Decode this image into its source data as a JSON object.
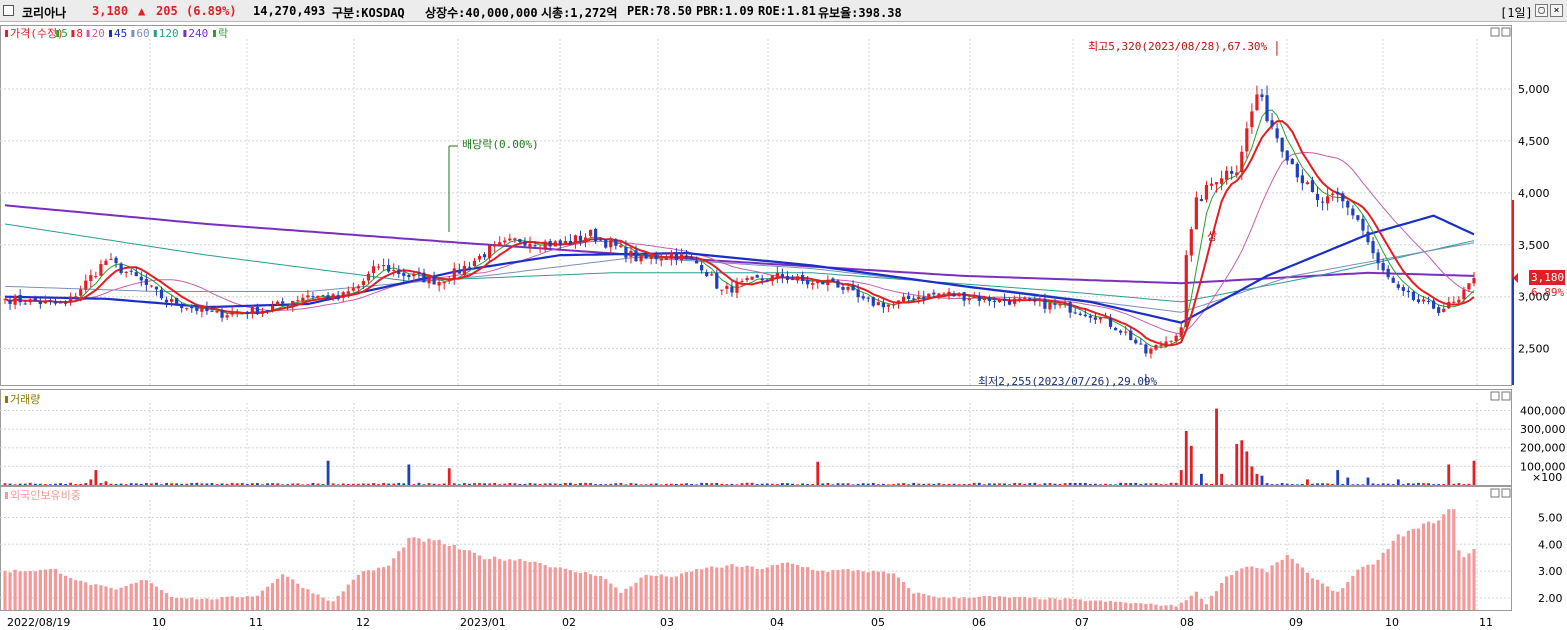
{
  "header": {
    "name": "코리아나",
    "price": "3,180",
    "change_arrow": "▲",
    "change": "205",
    "change_pct": "(6.89%)",
    "volume": "14,270,493",
    "market": "구분:KOSDAQ",
    "listed": "상장수:40,000,000",
    "mktcap": "시총:1,272억",
    "per": "PER:78.50",
    "pbr": "PBR:1.09",
    "roe": "ROE:1.81",
    "retention": "유보율:398.38",
    "period": "[1일]"
  },
  "legend": {
    "price": "가격(수정)",
    "ma": [
      "5",
      "8",
      "20",
      "45",
      "60",
      "120",
      "240"
    ],
    "ex": "락",
    "volume": "거래량",
    "foreign": "외국인보유비중"
  },
  "colors": {
    "up": "#e31e24",
    "down": "#1f3fbf",
    "ma5": "#2aa02a",
    "ma8": "#e31e24",
    "ma20": "#c65fa9",
    "ma45": "#1a2ec8",
    "ma60": "#7a8fbf",
    "ma120": "#2a9d8f",
    "ma240": "#7b2fbf",
    "foreign": "#f29a9a",
    "annot_high": "#c01010",
    "annot_low": "#1a2e7a",
    "annot_div": "#1a7a1a"
  },
  "annotations": {
    "high": "최고5,320(2023/08/28),67.30%",
    "low": "최저2,255(2023/07/26),29.09%",
    "dividend": "배당락(0.00%)",
    "upper_limit": "상"
  },
  "current": {
    "price": "3,180",
    "pct": "6.89%"
  },
  "chart_data": [
    {
      "type": "candlestick",
      "title": "가격(수정)",
      "x": [
        "2022/08/19",
        "10",
        "11",
        "12",
        "2023/01",
        "02",
        "03",
        "04",
        "05",
        "06",
        "07",
        "08",
        "09",
        "10",
        "11"
      ],
      "y_ticks": [
        2500,
        3000,
        3500,
        4000,
        4500,
        5000
      ],
      "y_tick_labels": [
        "2,500",
        "3,000",
        "3,500",
        "4,000",
        "4,500",
        "5,000"
      ],
      "ylim": [
        2150,
        5500
      ],
      "anchors": [
        {
          "i": 0,
          "p": 2980
        },
        {
          "i": 12,
          "p": 2920
        },
        {
          "i": 20,
          "p": 3350
        },
        {
          "i": 26,
          "p": 3180
        },
        {
          "i": 32,
          "p": 2960
        },
        {
          "i": 42,
          "p": 2830
        },
        {
          "i": 52,
          "p": 2880
        },
        {
          "i": 60,
          "p": 3020
        },
        {
          "i": 66,
          "p": 2980
        },
        {
          "i": 70,
          "p": 3100
        },
        {
          "i": 74,
          "p": 3300
        },
        {
          "i": 80,
          "p": 3200
        },
        {
          "i": 86,
          "p": 3150
        },
        {
          "i": 90,
          "p": 3250
        },
        {
          "i": 96,
          "p": 3450
        },
        {
          "i": 102,
          "p": 3550
        },
        {
          "i": 110,
          "p": 3500
        },
        {
          "i": 116,
          "p": 3600
        },
        {
          "i": 122,
          "p": 3450
        },
        {
          "i": 126,
          "p": 3350
        },
        {
          "i": 132,
          "p": 3420
        },
        {
          "i": 138,
          "p": 3300
        },
        {
          "i": 142,
          "p": 3050
        },
        {
          "i": 148,
          "p": 3150
        },
        {
          "i": 154,
          "p": 3200
        },
        {
          "i": 160,
          "p": 3120
        },
        {
          "i": 164,
          "p": 3150
        },
        {
          "i": 170,
          "p": 2950
        },
        {
          "i": 176,
          "p": 2920
        },
        {
          "i": 180,
          "p": 3000
        },
        {
          "i": 186,
          "p": 3030
        },
        {
          "i": 194,
          "p": 2980
        },
        {
          "i": 202,
          "p": 2950
        },
        {
          "i": 210,
          "p": 2900
        },
        {
          "i": 216,
          "p": 2820
        },
        {
          "i": 222,
          "p": 2650
        },
        {
          "i": 226,
          "p": 2460
        },
        {
          "i": 229,
          "p": 2540
        },
        {
          "i": 233,
          "p": 2680
        },
        {
          "i": 234,
          "p": 3400
        },
        {
          "i": 236,
          "p": 3900
        },
        {
          "i": 240,
          "p": 4150
        },
        {
          "i": 244,
          "p": 4250
        },
        {
          "i": 248,
          "p": 4950
        },
        {
          "i": 252,
          "p": 4550
        },
        {
          "i": 256,
          "p": 4200
        },
        {
          "i": 260,
          "p": 3900
        },
        {
          "i": 264,
          "p": 3950
        },
        {
          "i": 268,
          "p": 3750
        },
        {
          "i": 272,
          "p": 3300
        },
        {
          "i": 276,
          "p": 3050
        },
        {
          "i": 280,
          "p": 2950
        },
        {
          "i": 284,
          "p": 2880
        },
        {
          "i": 288,
          "p": 2950
        },
        {
          "i": 291,
          "p": 3180
        }
      ],
      "ma_end": {
        "ma45": 3600,
        "ma60": 3520,
        "ma120": 3540,
        "ma240": 3200
      }
    },
    {
      "type": "bar",
      "title": "거래량",
      "y_ticks": [
        100000,
        200000,
        300000,
        400000
      ],
      "y_tick_labels": [
        "100,000",
        "200,000",
        "300,000",
        "400,000"
      ],
      "unit": "×100",
      "ylim": [
        0,
        440000
      ],
      "spikes": [
        {
          "i": 17,
          "v": 30000
        },
        {
          "i": 18,
          "v": 80000
        },
        {
          "i": 20,
          "v": 20000
        },
        {
          "i": 64,
          "v": 130000
        },
        {
          "i": 80,
          "v": 110000
        },
        {
          "i": 88,
          "v": 90000
        },
        {
          "i": 161,
          "v": 125000
        },
        {
          "i": 233,
          "v": 80000
        },
        {
          "i": 234,
          "v": 290000
        },
        {
          "i": 235,
          "v": 210000
        },
        {
          "i": 237,
          "v": 60000
        },
        {
          "i": 240,
          "v": 410000
        },
        {
          "i": 241,
          "v": 60000
        },
        {
          "i": 244,
          "v": 220000
        },
        {
          "i": 245,
          "v": 240000
        },
        {
          "i": 246,
          "v": 180000
        },
        {
          "i": 247,
          "v": 100000
        },
        {
          "i": 248,
          "v": 60000
        },
        {
          "i": 249,
          "v": 50000
        },
        {
          "i": 258,
          "v": 30000
        },
        {
          "i": 264,
          "v": 80000
        },
        {
          "i": 266,
          "v": 40000
        },
        {
          "i": 270,
          "v": 40000
        },
        {
          "i": 276,
          "v": 30000
        },
        {
          "i": 286,
          "v": 110000
        },
        {
          "i": 291,
          "v": 130000
        }
      ]
    },
    {
      "type": "bar",
      "title": "외국인보유비중",
      "y_ticks": [
        2.0,
        3.0,
        4.0,
        5.0
      ],
      "y_tick_labels": [
        "2.00",
        "3.00",
        "4.00",
        "5.00"
      ],
      "ylim": [
        1.55,
        5.8
      ],
      "anchors": [
        {
          "i": 0,
          "v": 3.0
        },
        {
          "i": 10,
          "v": 3.05
        },
        {
          "i": 15,
          "v": 2.6
        },
        {
          "i": 22,
          "v": 2.3
        },
        {
          "i": 28,
          "v": 2.7
        },
        {
          "i": 33,
          "v": 2.05
        },
        {
          "i": 40,
          "v": 1.95
        },
        {
          "i": 50,
          "v": 2.1
        },
        {
          "i": 55,
          "v": 2.9
        },
        {
          "i": 60,
          "v": 2.3
        },
        {
          "i": 65,
          "v": 1.85
        },
        {
          "i": 70,
          "v": 2.9
        },
        {
          "i": 76,
          "v": 3.2
        },
        {
          "i": 80,
          "v": 4.2
        },
        {
          "i": 86,
          "v": 4.1
        },
        {
          "i": 95,
          "v": 3.5
        },
        {
          "i": 104,
          "v": 3.4
        },
        {
          "i": 112,
          "v": 3.0
        },
        {
          "i": 118,
          "v": 2.85
        },
        {
          "i": 122,
          "v": 2.2
        },
        {
          "i": 127,
          "v": 2.85
        },
        {
          "i": 133,
          "v": 2.8
        },
        {
          "i": 138,
          "v": 3.1
        },
        {
          "i": 144,
          "v": 3.2
        },
        {
          "i": 150,
          "v": 3.1
        },
        {
          "i": 155,
          "v": 3.3
        },
        {
          "i": 162,
          "v": 3.0
        },
        {
          "i": 168,
          "v": 3.05
        },
        {
          "i": 176,
          "v": 2.9
        },
        {
          "i": 180,
          "v": 2.2
        },
        {
          "i": 186,
          "v": 2.0
        },
        {
          "i": 194,
          "v": 2.05
        },
        {
          "i": 210,
          "v": 1.95
        },
        {
          "i": 220,
          "v": 1.85
        },
        {
          "i": 232,
          "v": 1.7
        },
        {
          "i": 236,
          "v": 2.2
        },
        {
          "i": 238,
          "v": 1.8
        },
        {
          "i": 242,
          "v": 2.8
        },
        {
          "i": 246,
          "v": 3.2
        },
        {
          "i": 250,
          "v": 3.0
        },
        {
          "i": 254,
          "v": 3.6
        },
        {
          "i": 258,
          "v": 2.9
        },
        {
          "i": 264,
          "v": 2.2
        },
        {
          "i": 268,
          "v": 3.0
        },
        {
          "i": 272,
          "v": 3.4
        },
        {
          "i": 276,
          "v": 4.3
        },
        {
          "i": 280,
          "v": 4.6
        },
        {
          "i": 285,
          "v": 5.05
        },
        {
          "i": 287,
          "v": 5.4
        },
        {
          "i": 288,
          "v": 3.8
        },
        {
          "i": 289,
          "v": 3.5
        },
        {
          "i": 291,
          "v": 3.8
        }
      ]
    }
  ]
}
